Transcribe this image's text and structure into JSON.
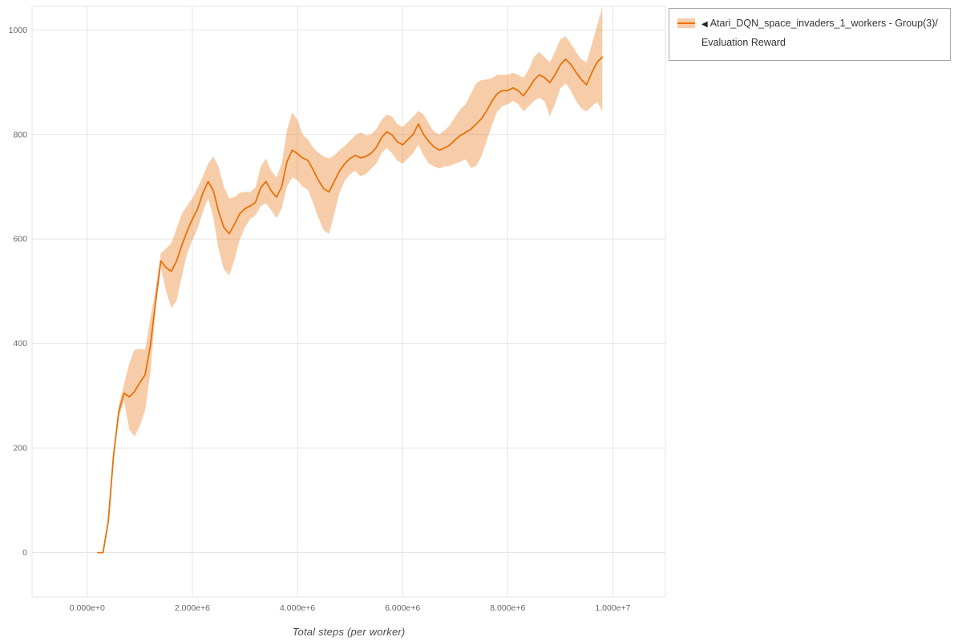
{
  "page": {
    "background": "#ffffff"
  },
  "legend": {
    "marker": "◀",
    "label": "Atari_DQN_space_invaders_1_workers - Group(3)/Evaluation Reward"
  },
  "chart_data": {
    "type": "line",
    "title": "",
    "xlabel": "Total steps (per worker)",
    "ylabel": "",
    "xlim": [
      -1050000,
      11000000
    ],
    "ylim": [
      -85,
      1045
    ],
    "grid": true,
    "grid_color": "#e5e5e5",
    "axis_text_color": "#666666",
    "legend_position": "top-right",
    "x_ticks": [
      {
        "value": 0,
        "label": "0.000e+0"
      },
      {
        "value": 2000000,
        "label": "2.000e+6"
      },
      {
        "value": 4000000,
        "label": "4.000e+6"
      },
      {
        "value": 6000000,
        "label": "6.000e+6"
      },
      {
        "value": 8000000,
        "label": "8.000e+6"
      },
      {
        "value": 10000000,
        "label": "1.000e+7"
      }
    ],
    "y_ticks": [
      {
        "value": 0,
        "label": "0"
      },
      {
        "value": 200,
        "label": "200"
      },
      {
        "value": 400,
        "label": "400"
      },
      {
        "value": 600,
        "label": "600"
      },
      {
        "value": 800,
        "label": "800"
      },
      {
        "value": 1000,
        "label": "1000"
      }
    ],
    "series": [
      {
        "name": "Atari_DQN_space_invaders_1_workers - Group(3)/Evaluation Reward",
        "color": "#e8710a",
        "band_opacity": 0.35,
        "x": [
          200000.0,
          300000.0,
          400000.0,
          500000.0,
          600000.0,
          700000.0,
          800000.0,
          900000.0,
          1000000.0,
          1100000.0,
          1200000.0,
          1300000.0,
          1400000.0,
          1500000.0,
          1600000.0,
          1700000.0,
          1800000.0,
          1900000.0,
          2000000.0,
          2100000.0,
          2200000.0,
          2300000.0,
          2400000.0,
          2500000.0,
          2600000.0,
          2700000.0,
          2800000.0,
          2900000.0,
          3000000.0,
          3100000.0,
          3200000.0,
          3300000.0,
          3400000.0,
          3500000.0,
          3600000.0,
          3700000.0,
          3800000.0,
          3900000.0,
          4000000.0,
          4100000.0,
          4200000.0,
          4300000.0,
          4400000.0,
          4500000.0,
          4600000.0,
          4700000.0,
          4800000.0,
          4900000.0,
          5000000.0,
          5100000.0,
          5200000.0,
          5300000.0,
          5400000.0,
          5500000.0,
          5600000.0,
          5700000.0,
          5800000.0,
          5900000.0,
          6000000.0,
          6100000.0,
          6200000.0,
          6300000.0,
          6400000.0,
          6500000.0,
          6600000.0,
          6700000.0,
          6800000.0,
          6900000.0,
          7000000.0,
          7100000.0,
          7200000.0,
          7300000.0,
          7400000.0,
          7500000.0,
          7600000.0,
          7700000.0,
          7800000.0,
          7900000.0,
          8000000.0,
          8100000.0,
          8200000.0,
          8300000.0,
          8400000.0,
          8500000.0,
          8600000.0,
          8700000.0,
          8800000.0,
          8900000.0,
          9000000.0,
          9100000.0,
          9200000.0,
          9300000.0,
          9400000.0,
          9500000.0,
          9600000.0,
          9700000.0,
          9800000.0
        ],
        "mean": [
          0,
          0,
          60,
          185,
          270,
          305,
          298,
          308,
          325,
          340,
          395,
          480,
          558,
          545,
          538,
          558,
          588,
          615,
          638,
          658,
          688,
          710,
          692,
          652,
          622,
          610,
          628,
          648,
          658,
          663,
          670,
          698,
          710,
          692,
          680,
          700,
          748,
          770,
          763,
          755,
          750,
          732,
          712,
          696,
          690,
          710,
          730,
          744,
          754,
          760,
          755,
          758,
          764,
          775,
          794,
          805,
          799,
          786,
          780,
          790,
          800,
          820,
          800,
          786,
          776,
          770,
          774,
          780,
          790,
          798,
          804,
          810,
          820,
          830,
          845,
          864,
          878,
          884,
          884,
          889,
          884,
          874,
          888,
          904,
          914,
          909,
          899,
          914,
          933,
          944,
          934,
          919,
          905,
          895,
          918,
          938,
          948
        ],
        "lower": [
          0,
          0,
          60,
          180,
          258,
          290,
          235,
          222,
          242,
          272,
          342,
          465,
          545,
          500,
          468,
          482,
          528,
          572,
          598,
          620,
          652,
          678,
          640,
          580,
          542,
          530,
          560,
          598,
          622,
          638,
          645,
          663,
          668,
          655,
          640,
          658,
          700,
          718,
          712,
          700,
          694,
          668,
          640,
          616,
          610,
          648,
          688,
          712,
          724,
          730,
          720,
          724,
          734,
          744,
          764,
          774,
          764,
          750,
          744,
          754,
          764,
          780,
          760,
          744,
          739,
          735,
          739,
          740,
          744,
          748,
          752,
          736,
          740,
          758,
          788,
          818,
          844,
          854,
          858,
          864,
          858,
          844,
          854,
          864,
          870,
          864,
          835,
          858,
          888,
          898,
          884,
          864,
          850,
          844,
          854,
          862,
          845
        ],
        "upper": [
          0,
          0,
          62,
          192,
          282,
          322,
          362,
          388,
          390,
          388,
          448,
          505,
          572,
          582,
          592,
          620,
          648,
          664,
          678,
          698,
          720,
          744,
          758,
          738,
          700,
          678,
          680,
          688,
          690,
          690,
          698,
          738,
          754,
          730,
          718,
          744,
          808,
          842,
          828,
          800,
          790,
          775,
          765,
          758,
          754,
          760,
          770,
          778,
          788,
          798,
          804,
          798,
          800,
          810,
          828,
          838,
          834,
          820,
          814,
          824,
          834,
          845,
          838,
          820,
          805,
          800,
          808,
          818,
          834,
          848,
          858,
          878,
          898,
          904,
          905,
          908,
          914,
          914,
          914,
          918,
          914,
          908,
          924,
          948,
          958,
          948,
          938,
          958,
          982,
          988,
          974,
          958,
          944,
          938,
          972,
          1008,
          1044
        ]
      }
    ]
  }
}
